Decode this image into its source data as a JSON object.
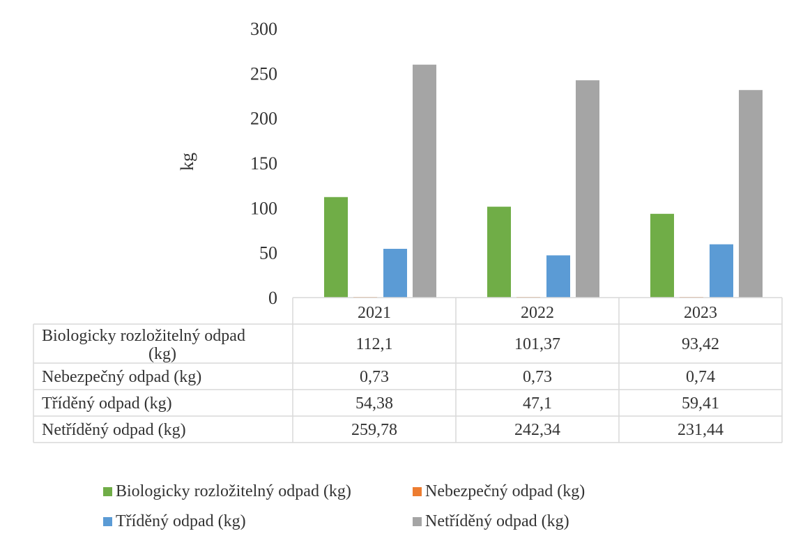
{
  "chart_data": {
    "type": "bar",
    "ylabel": "kg",
    "xlabel": "",
    "ylim": [
      0,
      300
    ],
    "y_ticks": [
      0,
      50,
      100,
      150,
      200,
      250,
      300
    ],
    "grid": false,
    "legend_position": "bottom",
    "categories": [
      "2021",
      "2022",
      "2023"
    ],
    "series": [
      {
        "name": "Biologicky rozložitelný odpad (kg)",
        "color": "#70ad47",
        "values": [
          112.1,
          101.37,
          93.42
        ],
        "labels": [
          "112,1",
          "101,37",
          "93,42"
        ]
      },
      {
        "name": "Nebezpečný odpad (kg)",
        "color": "#ed7d31",
        "values": [
          0.73,
          0.73,
          0.74
        ],
        "labels": [
          "0,73",
          "0,73",
          "0,74"
        ]
      },
      {
        "name": "Tříděný odpad (kg)",
        "color": "#5b9bd5",
        "values": [
          54.38,
          47.1,
          59.41
        ],
        "labels": [
          "54,38",
          "47,1",
          "59,41"
        ]
      },
      {
        "name": "Netříděný odpad (kg)",
        "color": "#a5a5a5",
        "values": [
          259.78,
          242.34,
          231.44
        ],
        "labels": [
          "259,78",
          "242,34",
          "231,44"
        ]
      }
    ],
    "table_row_labels": [
      [
        "Biologicky rozložitelný odpad",
        "(kg)"
      ],
      [
        "Nebezpečný odpad (kg)"
      ],
      [
        "Tříděný odpad (kg)"
      ],
      [
        "Netříděný odpad (kg)"
      ]
    ]
  }
}
